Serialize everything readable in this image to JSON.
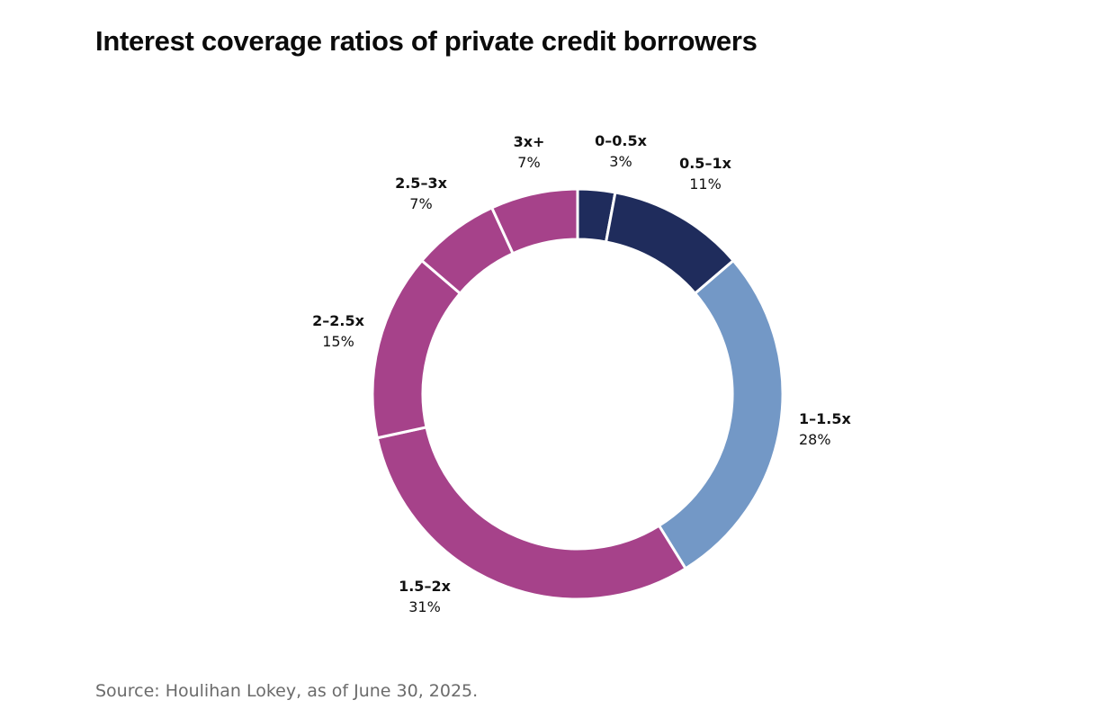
{
  "title": "Interest coverage ratios of private credit borrowers",
  "source": "Source: Houlihan Lokey, as of June 30, 2025.",
  "chart_data": {
    "type": "pie",
    "style": "donut",
    "title": "Interest coverage ratios of private credit borrowers",
    "slices": [
      {
        "label": "0–0.5x",
        "value": 3,
        "display": "3%",
        "color": "#1f2c5c"
      },
      {
        "label": "0.5–1x",
        "value": 11,
        "display": "11%",
        "color": "#1f2c5c"
      },
      {
        "label": "1–1.5x",
        "value": 28,
        "display": "28%",
        "color": "#7398c6"
      },
      {
        "label": "1.5–2x",
        "value": 31,
        "display": "31%",
        "color": "#a6428a"
      },
      {
        "label": "2–2.5x",
        "value": 15,
        "display": "15%",
        "color": "#a6428a"
      },
      {
        "label": "2.5–3x",
        "value": 7,
        "display": "7%",
        "color": "#a6428a"
      },
      {
        "label": "3x+",
        "value": 7,
        "display": "7%",
        "color": "#a6428a"
      }
    ],
    "legend": "none",
    "grid": false
  }
}
